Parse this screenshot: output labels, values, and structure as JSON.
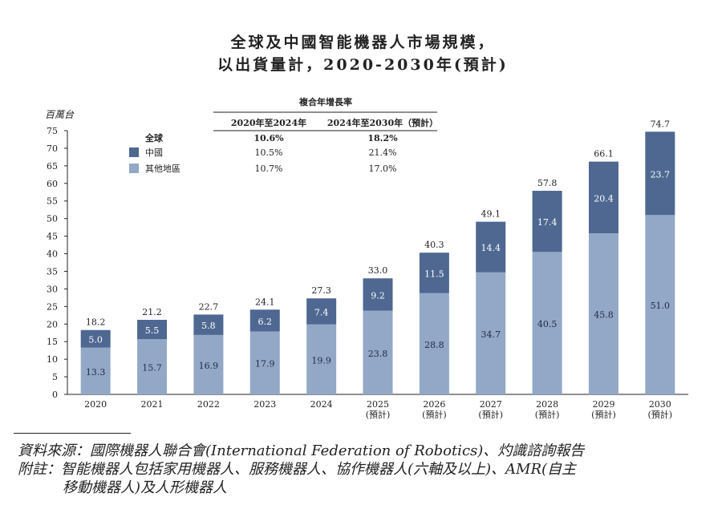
{
  "title_line1": "全球及中國智能機器人市場規模，",
  "title_line2": "以出貨量計，2020-2030年(預計)",
  "footnotes": {
    "source": "資料來源：國際機器人聯合會(International Federation of Robotics)、灼識諮詢報告",
    "note_line1": "附註：智能機器人包括家用機器人、服務機器人、協作機器人(六軸及以上)、AMR(自主",
    "note_line2": "移動機器人)及人形機器人"
  },
  "chart_data": {
    "type": "bar",
    "stacked": true,
    "ylabel": "百萬台",
    "ylim": [
      0,
      75
    ],
    "yticks": [
      0,
      5,
      10,
      15,
      20,
      25,
      30,
      35,
      40,
      45,
      50,
      55,
      60,
      65,
      70,
      75
    ],
    "categories": [
      "2020",
      "2021",
      "2022",
      "2023",
      "2024",
      "2025",
      "2026",
      "2027",
      "2028",
      "2029",
      "2030"
    ],
    "category_notes": [
      "",
      "",
      "",
      "",
      "",
      "(預計)",
      "(預計)",
      "(預計)",
      "(預計)",
      "(預計)",
      "(預計)"
    ],
    "series": [
      {
        "name": "其他地區",
        "color": "#93a8c6",
        "values": [
          13.3,
          15.7,
          16.9,
          17.9,
          19.9,
          23.8,
          28.8,
          34.7,
          40.5,
          45.8,
          51.0
        ]
      },
      {
        "name": "中國",
        "color": "#4e6891",
        "values": [
          5.0,
          5.5,
          5.8,
          6.2,
          7.4,
          9.2,
          11.5,
          14.4,
          17.4,
          20.4,
          23.7
        ]
      }
    ],
    "totals": [
      18.2,
      21.2,
      22.7,
      24.1,
      27.3,
      33.0,
      40.3,
      49.1,
      57.8,
      66.1,
      74.7
    ],
    "cagr_table": {
      "header": "複合年增長率",
      "columns": [
        "2020年至2024年",
        "2024年至2030年（預計）"
      ],
      "rows": [
        {
          "label": "全球",
          "values": [
            "10.6%",
            "18.2%"
          ]
        },
        {
          "label": "中國",
          "values": [
            "10.5%",
            "21.4%"
          ]
        },
        {
          "label": "其他地區",
          "values": [
            "10.7%",
            "17.0%"
          ]
        }
      ]
    }
  }
}
